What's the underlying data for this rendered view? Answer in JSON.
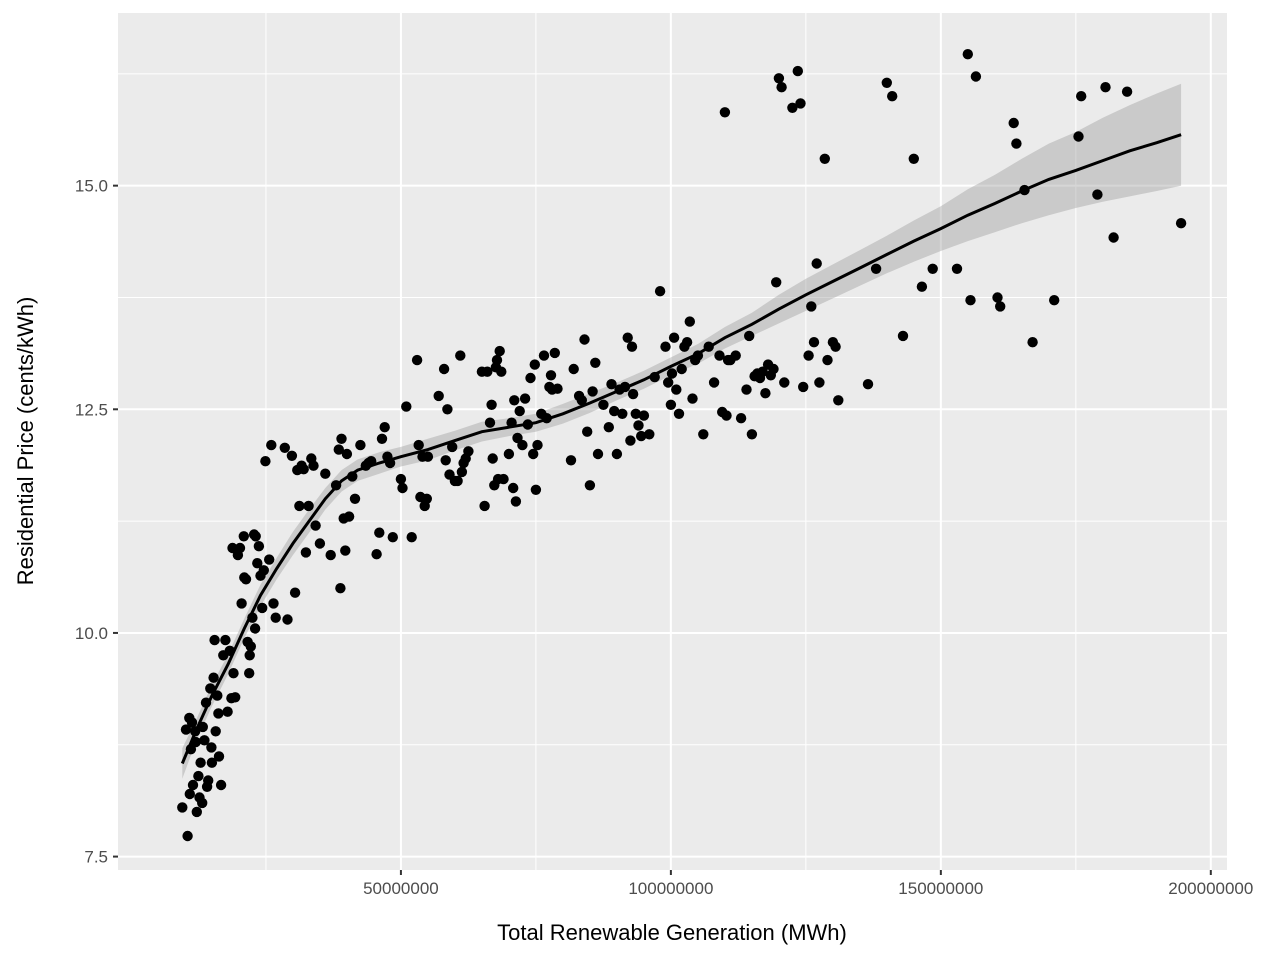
{
  "chart_data": {
    "type": "scatter",
    "title": "",
    "xlabel": "Total Renewable Generation (MWh)",
    "ylabel": "Residential Price (cents/kWh)",
    "xlim": [
      -2400000,
      203000000
    ],
    "ylim": [
      7.35,
      16.93
    ],
    "x_ticks": [
      {
        "value": 50000000,
        "label": "50000000"
      },
      {
        "value": 100000000,
        "label": "100000000"
      },
      {
        "value": 150000000,
        "label": "150000000"
      },
      {
        "value": 200000000,
        "label": "200000000"
      }
    ],
    "y_ticks": [
      {
        "value": 7.5,
        "label": "7.5"
      },
      {
        "value": 10.0,
        "label": "10.0"
      },
      {
        "value": 12.5,
        "label": "12.5"
      },
      {
        "value": 15.0,
        "label": "15.0"
      }
    ],
    "grid": true,
    "legend": "none",
    "colors": {
      "panel": "#ebebeb",
      "grid": "#ffffff",
      "point": "#000000",
      "smooth": "#000000",
      "ribbon": "#999999"
    },
    "points": [
      [
        9500000.0,
        8.05
      ],
      [
        10500000.0,
        7.73
      ],
      [
        10200000.0,
        8.92
      ],
      [
        10800000.0,
        9.05
      ],
      [
        11100000.0,
        8.7
      ],
      [
        11500000.0,
        8.3
      ],
      [
        11900000.0,
        8.9
      ],
      [
        12200000.0,
        8.0
      ],
      [
        12500000.0,
        8.4
      ],
      [
        12900000.0,
        8.55
      ],
      [
        13200000.0,
        8.1
      ],
      [
        13600000.0,
        8.8
      ],
      [
        13900000.0,
        9.22
      ],
      [
        14300000.0,
        8.35
      ],
      [
        14700000.0,
        9.38
      ],
      [
        15000000.0,
        8.55
      ],
      [
        15300000.0,
        9.5
      ],
      [
        15700000.0,
        8.9
      ],
      [
        16000000.0,
        9.3
      ],
      [
        16300000.0,
        8.62
      ],
      [
        16700000.0,
        8.3
      ],
      [
        17100000.0,
        9.75
      ],
      [
        17500000.0,
        9.92
      ],
      [
        17900000.0,
        9.12
      ],
      [
        18300000.0,
        9.8
      ],
      [
        18600000.0,
        9.27
      ],
      [
        19000000.0,
        9.55
      ],
      [
        19300000.0,
        9.28
      ],
      [
        10900000.0,
        8.2
      ],
      [
        11300000.0,
        9.0
      ],
      [
        12000000.0,
        8.78
      ],
      [
        12700000.0,
        8.16
      ],
      [
        13300000.0,
        8.95
      ],
      [
        14100000.0,
        8.28
      ],
      [
        14900000.0,
        8.72
      ],
      [
        15500000.0,
        9.92
      ],
      [
        16200000.0,
        9.1
      ],
      [
        18800000.0,
        10.95
      ],
      [
        19800000.0,
        10.87
      ],
      [
        20500000.0,
        10.33
      ],
      [
        20900000.0,
        11.08
      ],
      [
        21300000.0,
        10.6
      ],
      [
        21600000.0,
        9.9
      ],
      [
        21900000.0,
        9.55
      ],
      [
        22200000.0,
        9.85
      ],
      [
        22500000.0,
        10.17
      ],
      [
        22800000.0,
        11.1
      ],
      [
        23100000.0,
        11.08
      ],
      [
        23400000.0,
        10.78
      ],
      [
        23700000.0,
        10.97
      ],
      [
        24000000.0,
        10.64
      ],
      [
        24300000.0,
        10.28
      ],
      [
        24600000.0,
        10.7
      ],
      [
        24900000.0,
        11.92
      ],
      [
        25600000.0,
        10.82
      ],
      [
        26000000.0,
        12.1
      ],
      [
        26400000.0,
        10.33
      ],
      [
        26800000.0,
        10.17
      ],
      [
        20200000.0,
        10.95
      ],
      [
        21000000.0,
        10.62
      ],
      [
        22000000.0,
        9.75
      ],
      [
        23000000.0,
        10.05
      ],
      [
        28500000.0,
        12.07
      ],
      [
        29000000.0,
        10.15
      ],
      [
        29800000.0,
        11.98
      ],
      [
        30400000.0,
        10.45
      ],
      [
        30800000.0,
        11.82
      ],
      [
        31200000.0,
        11.42
      ],
      [
        31600000.0,
        11.87
      ],
      [
        32000000.0,
        11.83
      ],
      [
        32400000.0,
        10.9
      ],
      [
        32900000.0,
        11.42
      ],
      [
        33400000.0,
        11.95
      ],
      [
        33800000.0,
        11.87
      ],
      [
        34200000.0,
        11.2
      ],
      [
        35000000.0,
        11.0
      ],
      [
        36000000.0,
        11.78
      ],
      [
        37000000.0,
        10.87
      ],
      [
        38000000.0,
        11.65
      ],
      [
        38500000.0,
        12.05
      ],
      [
        38800000.0,
        10.5
      ],
      [
        39000000.0,
        12.17
      ],
      [
        39400000.0,
        11.28
      ],
      [
        39700000.0,
        10.92
      ],
      [
        40000000.0,
        12.0
      ],
      [
        40400000.0,
        11.3
      ],
      [
        41000000.0,
        11.75
      ],
      [
        41500000.0,
        11.5
      ],
      [
        42500000.0,
        12.1
      ],
      [
        43500000.0,
        11.87
      ],
      [
        44000000.0,
        11.9
      ],
      [
        44500000.0,
        11.92
      ],
      [
        45500000.0,
        10.88
      ],
      [
        46000000.0,
        11.12
      ],
      [
        46500000.0,
        12.17
      ],
      [
        47000000.0,
        12.3
      ],
      [
        47500000.0,
        11.97
      ],
      [
        48000000.0,
        11.9
      ],
      [
        48500000.0,
        11.07
      ],
      [
        50000000.0,
        11.72
      ],
      [
        50300000.0,
        11.62
      ],
      [
        51000000.0,
        12.53
      ],
      [
        52000000.0,
        11.07
      ],
      [
        53000000.0,
        13.05
      ],
      [
        53300000.0,
        12.1
      ],
      [
        53600000.0,
        11.52
      ],
      [
        54000000.0,
        11.97
      ],
      [
        54400000.0,
        11.42
      ],
      [
        54800000.0,
        11.5
      ],
      [
        55000000.0,
        11.97
      ],
      [
        57000000.0,
        12.65
      ],
      [
        58000000.0,
        12.95
      ],
      [
        58300000.0,
        11.93
      ],
      [
        58600000.0,
        12.5
      ],
      [
        59000000.0,
        11.77
      ],
      [
        59500000.0,
        12.08
      ],
      [
        60000000.0,
        11.7
      ],
      [
        60500000.0,
        11.7
      ],
      [
        61000000.0,
        13.1
      ],
      [
        61300000.0,
        11.8
      ],
      [
        61600000.0,
        11.9
      ],
      [
        62000000.0,
        11.95
      ],
      [
        62500000.0,
        12.03
      ],
      [
        65000000.0,
        12.92
      ],
      [
        65500000.0,
        11.42
      ],
      [
        66000000.0,
        12.92
      ],
      [
        66500000.0,
        12.35
      ],
      [
        66800000.0,
        12.55
      ],
      [
        67000000.0,
        11.95
      ],
      [
        67300000.0,
        11.65
      ],
      [
        67600000.0,
        12.97
      ],
      [
        67800000.0,
        13.05
      ],
      [
        68000000.0,
        11.72
      ],
      [
        68300000.0,
        13.15
      ],
      [
        68600000.0,
        12.92
      ],
      [
        69000000.0,
        11.72
      ],
      [
        70000000.0,
        12.0
      ],
      [
        70500000.0,
        12.35
      ],
      [
        70800000.0,
        11.62
      ],
      [
        71000000.0,
        12.6
      ],
      [
        71300000.0,
        11.47
      ],
      [
        71600000.0,
        12.18
      ],
      [
        72000000.0,
        12.48
      ],
      [
        72500000.0,
        12.1
      ],
      [
        73000000.0,
        12.62
      ],
      [
        73500000.0,
        12.33
      ],
      [
        74000000.0,
        12.85
      ],
      [
        74500000.0,
        12.0
      ],
      [
        74800000.0,
        13.0
      ],
      [
        75000000.0,
        11.6
      ],
      [
        75300000.0,
        12.1
      ],
      [
        76000000.0,
        12.45
      ],
      [
        76500000.0,
        13.1
      ],
      [
        77000000.0,
        12.4
      ],
      [
        77500000.0,
        12.75
      ],
      [
        77800000.0,
        12.88
      ],
      [
        78000000.0,
        12.72
      ],
      [
        78500000.0,
        13.13
      ],
      [
        79000000.0,
        12.73
      ],
      [
        81500000.0,
        11.93
      ],
      [
        82000000.0,
        12.95
      ],
      [
        83000000.0,
        12.65
      ],
      [
        83500000.0,
        12.6
      ],
      [
        84000000.0,
        13.28
      ],
      [
        84500000.0,
        12.25
      ],
      [
        85000000.0,
        11.65
      ],
      [
        85500000.0,
        12.7
      ],
      [
        86000000.0,
        13.02
      ],
      [
        86500000.0,
        12.0
      ],
      [
        87500000.0,
        12.55
      ],
      [
        88500000.0,
        12.3
      ],
      [
        89000000.0,
        12.78
      ],
      [
        89500000.0,
        12.48
      ],
      [
        90000000.0,
        12.0
      ],
      [
        90500000.0,
        12.72
      ],
      [
        91000000.0,
        12.45
      ],
      [
        91500000.0,
        12.75
      ],
      [
        92000000.0,
        13.3
      ],
      [
        92500000.0,
        12.15
      ],
      [
        92800000.0,
        13.2
      ],
      [
        93000000.0,
        12.67
      ],
      [
        93500000.0,
        12.45
      ],
      [
        94000000.0,
        12.32
      ],
      [
        94500000.0,
        12.2
      ],
      [
        95000000.0,
        12.43
      ],
      [
        96000000.0,
        12.22
      ],
      [
        97000000.0,
        12.86
      ],
      [
        98000000.0,
        13.82
      ],
      [
        99000000.0,
        13.2
      ],
      [
        99500000.0,
        12.8
      ],
      [
        100000000.0,
        12.55
      ],
      [
        100200000.0,
        12.9
      ],
      [
        100600000.0,
        13.3
      ],
      [
        101000000.0,
        12.72
      ],
      [
        101500000.0,
        12.45
      ],
      [
        102000000.0,
        12.95
      ],
      [
        102500000.0,
        13.2
      ],
      [
        103000000.0,
        13.25
      ],
      [
        103500000.0,
        13.48
      ],
      [
        104000000.0,
        12.62
      ],
      [
        104500000.0,
        13.05
      ],
      [
        105000000.0,
        13.1
      ],
      [
        106000000.0,
        12.22
      ],
      [
        107000000.0,
        13.2
      ],
      [
        108000000.0,
        12.8
      ],
      [
        109000000.0,
        13.1
      ],
      [
        109500000.0,
        12.47
      ],
      [
        110000000.0,
        15.82
      ],
      [
        110300000.0,
        12.43
      ],
      [
        110600000.0,
        13.05
      ],
      [
        111000000.0,
        13.05
      ],
      [
        112000000.0,
        13.1
      ],
      [
        113000000.0,
        12.4
      ],
      [
        114000000.0,
        12.72
      ],
      [
        114500000.0,
        13.32
      ],
      [
        115000000.0,
        12.22
      ],
      [
        115500000.0,
        12.87
      ],
      [
        116000000.0,
        12.9
      ],
      [
        116500000.0,
        12.85
      ],
      [
        117000000.0,
        12.92
      ],
      [
        117500000.0,
        12.68
      ],
      [
        118000000.0,
        13.0
      ],
      [
        118500000.0,
        12.88
      ],
      [
        119000000.0,
        12.95
      ],
      [
        119500000.0,
        13.92
      ],
      [
        120000000.0,
        16.2
      ],
      [
        120500000.0,
        16.1
      ],
      [
        121000000.0,
        12.8
      ],
      [
        122500000.0,
        15.87
      ],
      [
        123500000.0,
        16.28
      ],
      [
        124000000.0,
        15.92
      ],
      [
        124500000.0,
        12.75
      ],
      [
        125500000.0,
        13.1
      ],
      [
        126000000.0,
        13.65
      ],
      [
        126500000.0,
        13.25
      ],
      [
        127000000.0,
        14.13
      ],
      [
        127500000.0,
        12.8
      ],
      [
        128500000.0,
        15.3
      ],
      [
        129000000.0,
        13.05
      ],
      [
        130000000.0,
        13.25
      ],
      [
        130500000.0,
        13.2
      ],
      [
        131000000.0,
        12.6
      ],
      [
        136500000.0,
        12.78
      ],
      [
        138000000.0,
        14.07
      ],
      [
        140000000.0,
        16.15
      ],
      [
        141000000.0,
        16.0
      ],
      [
        143000000.0,
        13.32
      ],
      [
        145000000.0,
        15.3
      ],
      [
        146500000.0,
        13.87
      ],
      [
        148500000.0,
        14.07
      ],
      [
        153000000.0,
        14.07
      ],
      [
        155000000.0,
        16.47
      ],
      [
        155500000.0,
        13.72
      ],
      [
        156500000.0,
        16.22
      ],
      [
        160500000.0,
        13.75
      ],
      [
        161000000.0,
        13.65
      ],
      [
        163500000.0,
        15.7
      ],
      [
        164000000.0,
        15.47
      ],
      [
        165500000.0,
        14.95
      ],
      [
        167000000.0,
        13.25
      ],
      [
        171000000.0,
        13.72
      ],
      [
        175500000.0,
        15.55
      ],
      [
        176000000.0,
        16.0
      ],
      [
        179000000.0,
        14.9
      ],
      [
        180500000.0,
        16.1
      ],
      [
        182000000.0,
        14.42
      ],
      [
        184500000.0,
        16.05
      ],
      [
        194500000.0,
        14.58
      ]
    ],
    "smooth": {
      "x": [
        9500000.0,
        12000000.0,
        15000000.0,
        18000000.0,
        21000000.0,
        24000000.0,
        27000000.0,
        30000000.0,
        33000000.0,
        36000000.0,
        39000000.0,
        42000000.0,
        46000000.0,
        50000000.0,
        55000000.0,
        60000000.0,
        65000000.0,
        70000000.0,
        75000000.0,
        80000000.0,
        85000000.0,
        90000000.0,
        95000000.0,
        100000000.0,
        105000000.0,
        110000000.0,
        115000000.0,
        120000000.0,
        125000000.0,
        130000000.0,
        135000000.0,
        140000000.0,
        145000000.0,
        150000000.0,
        155000000.0,
        160000000.0,
        165000000.0,
        170000000.0,
        175000000.0,
        180000000.0,
        185000000.0,
        190000000.0,
        194500000.0
      ],
      "y": [
        8.54,
        8.9,
        9.3,
        9.65,
        10.05,
        10.42,
        10.72,
        11.0,
        11.25,
        11.5,
        11.7,
        11.82,
        11.9,
        11.97,
        12.05,
        12.15,
        12.25,
        12.3,
        12.35,
        12.45,
        12.57,
        12.7,
        12.83,
        12.98,
        13.12,
        13.3,
        13.45,
        13.62,
        13.78,
        13.93,
        14.08,
        14.23,
        14.38,
        14.52,
        14.67,
        14.8,
        14.94,
        15.07,
        15.17,
        15.28,
        15.39,
        15.48,
        15.57
      ],
      "lower": [
        8.37,
        8.78,
        9.18,
        9.54,
        9.94,
        10.3,
        10.6,
        10.87,
        11.12,
        11.38,
        11.58,
        11.7,
        11.78,
        11.86,
        11.93,
        12.04,
        12.14,
        12.2,
        12.25,
        12.34,
        12.46,
        12.6,
        12.73,
        12.88,
        13.01,
        13.18,
        13.32,
        13.46,
        13.6,
        13.74,
        13.88,
        14.02,
        14.15,
        14.27,
        14.38,
        14.48,
        14.58,
        14.67,
        14.75,
        14.82,
        14.88,
        14.94,
        15.0
      ],
      "upper": [
        8.71,
        9.02,
        9.42,
        9.76,
        10.16,
        10.54,
        10.84,
        11.13,
        11.38,
        11.62,
        11.82,
        11.94,
        12.02,
        12.08,
        12.17,
        12.26,
        12.36,
        12.4,
        12.45,
        12.56,
        12.68,
        12.8,
        12.93,
        13.08,
        13.23,
        13.42,
        13.58,
        13.78,
        13.96,
        14.12,
        14.28,
        14.44,
        14.61,
        14.77,
        14.96,
        15.12,
        15.3,
        15.47,
        15.6,
        15.76,
        15.9,
        16.03,
        16.14
      ]
    }
  }
}
